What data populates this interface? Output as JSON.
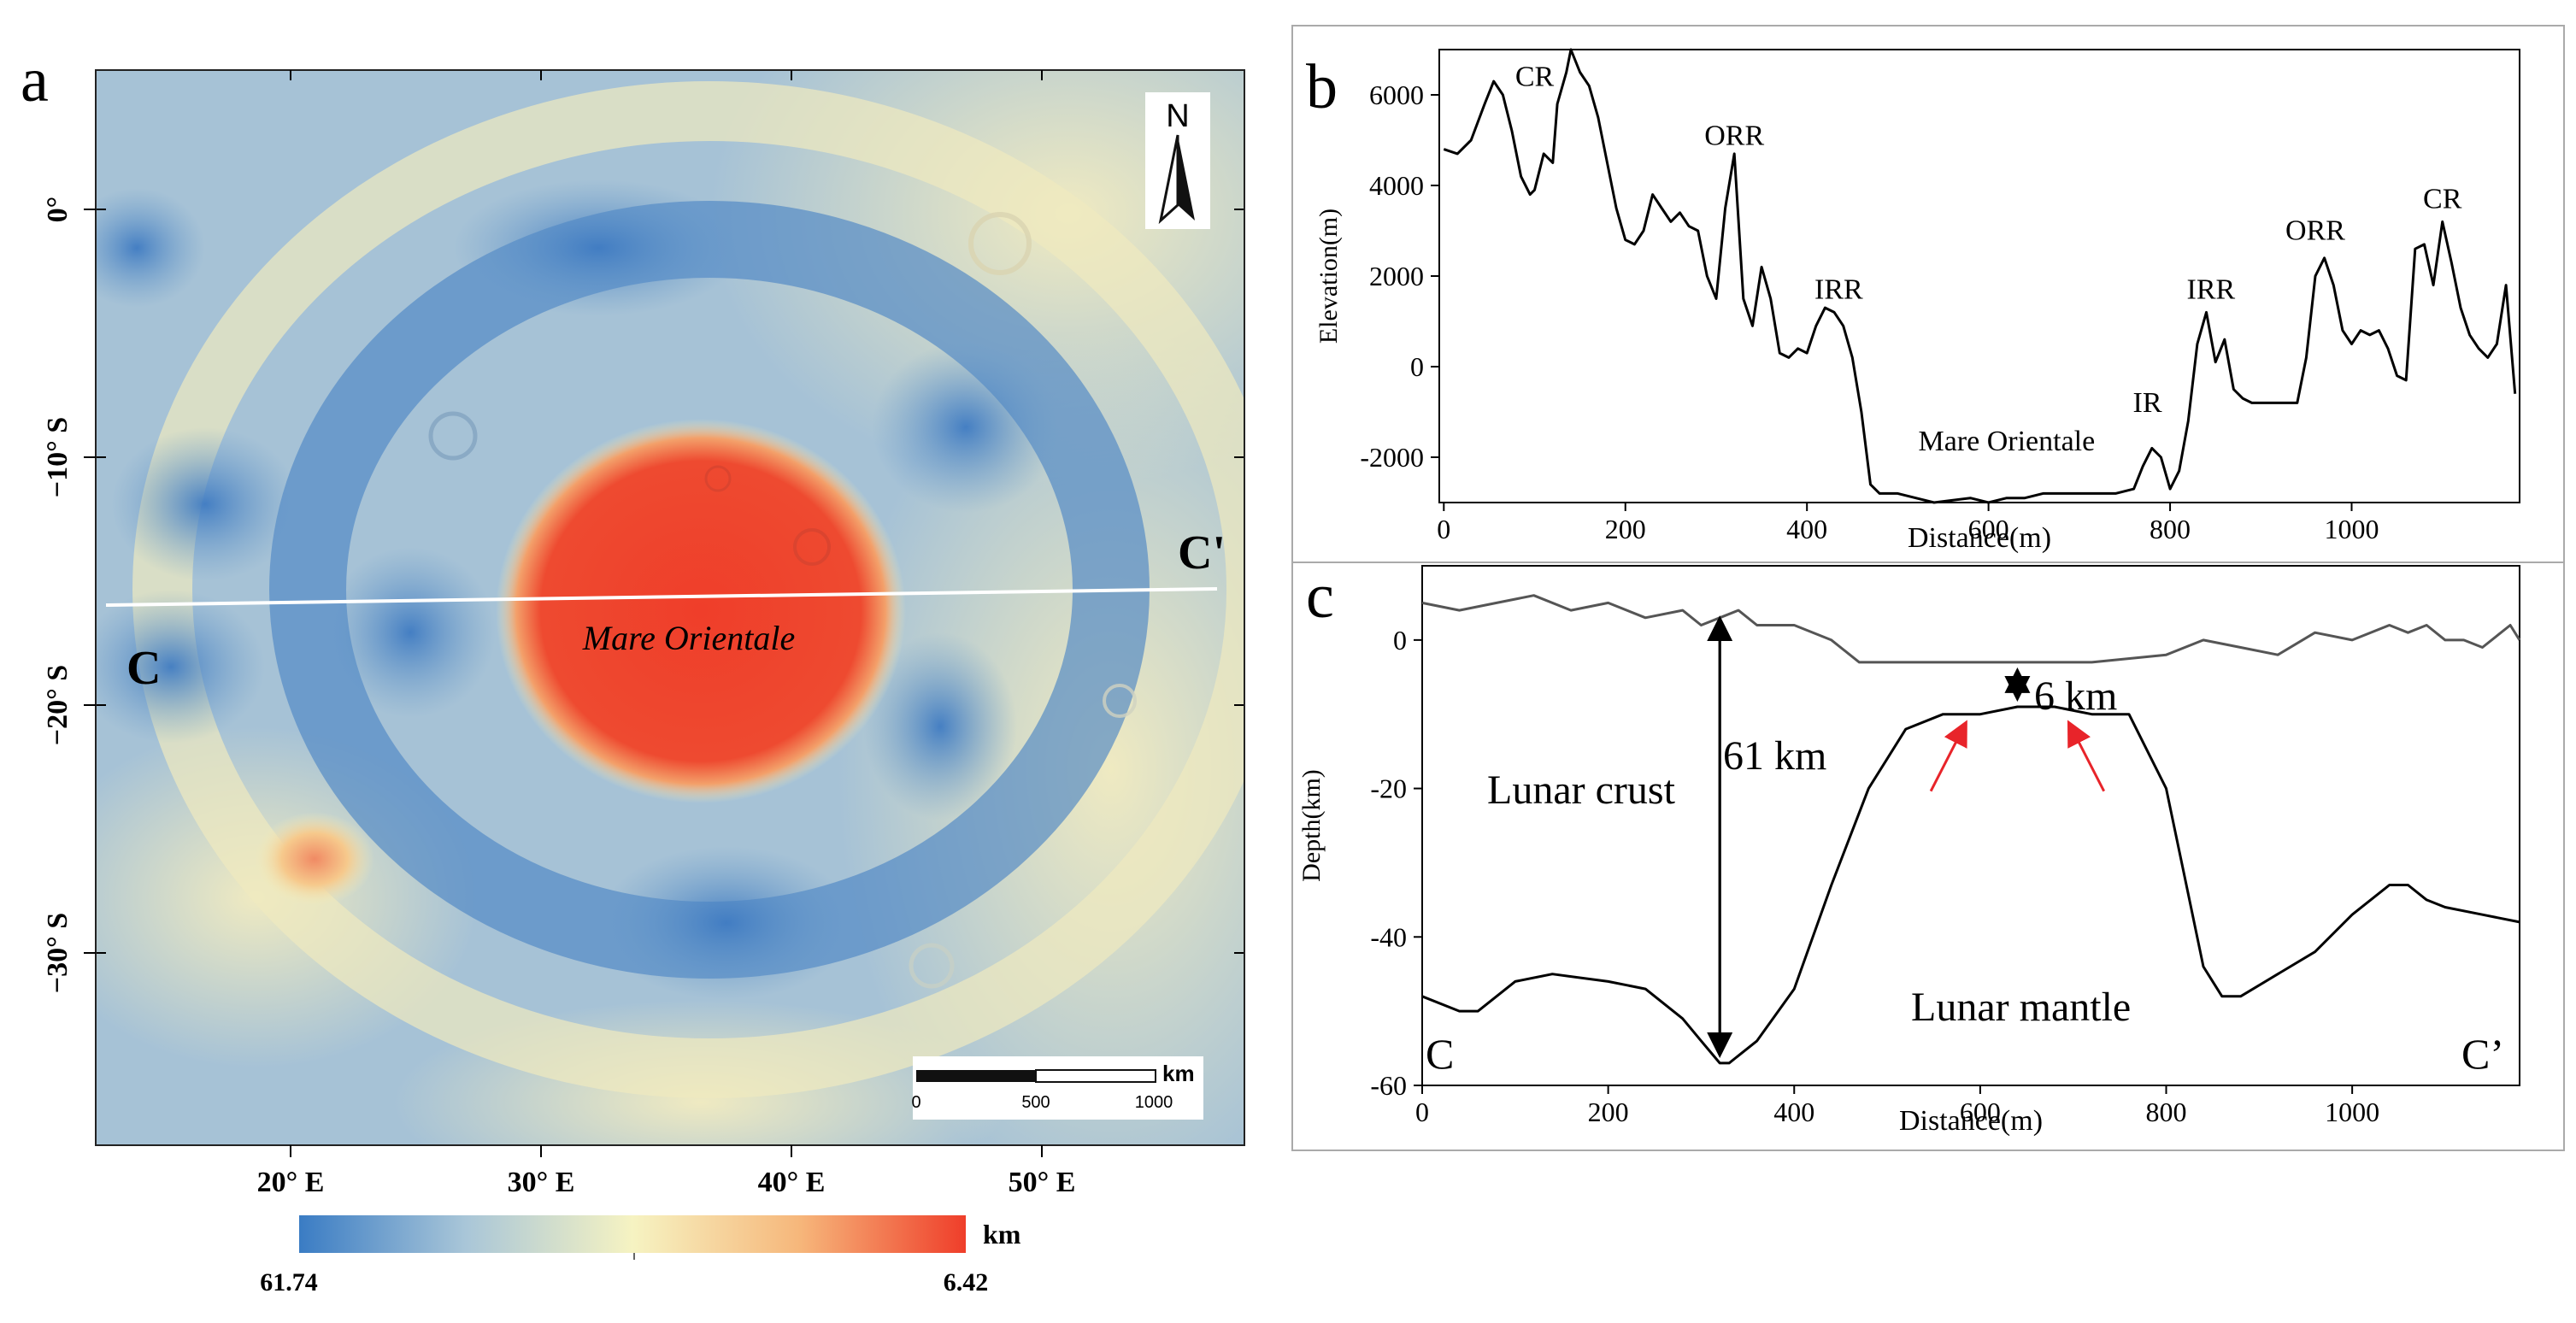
{
  "figure": {
    "panel_a": {
      "label": "a",
      "crater_label": "Mare Orientale",
      "profile_start": "C",
      "profile_end": "C'",
      "north": "N",
      "lon_ticks": [
        "20° E",
        "30° E",
        "40° E",
        "50° E"
      ],
      "lon_values": [
        20,
        30,
        40,
        50
      ],
      "lat_ticks": [
        "0°",
        "−10° S",
        "−20° S",
        "−30° S"
      ],
      "lat_values": [
        0,
        -10,
        -20,
        -30
      ],
      "scale_bar": {
        "unit": "km",
        "labels": [
          "0",
          "500",
          "1000"
        ]
      },
      "colorbar": {
        "unit": "km",
        "min_label": "61.74",
        "max_label": "6.42",
        "colors": [
          "#3a7cc4",
          "#a9c6d8",
          "#f6f3c2",
          "#f6b77b",
          "#ef3e2a"
        ]
      }
    },
    "panel_b": {
      "label": "b"
    },
    "panel_c": {
      "label": "c",
      "annotations": {
        "crust_thickness": "61 km",
        "mantle_uplift": "6 km",
        "crust": "Lunar crust",
        "mantle": "Lunar mantle",
        "start": "C",
        "end": "C’"
      }
    }
  },
  "chart_data": [
    {
      "type": "line",
      "panel": "b",
      "xlabel": "Distance(m)",
      "ylabel": "Elevation(m)",
      "xlim": [
        -5,
        1185
      ],
      "ylim": [
        -3000,
        7000
      ],
      "xticks": [
        0,
        200,
        400,
        600,
        800,
        1000
      ],
      "yticks": [
        -2000,
        0,
        2000,
        4000,
        6000
      ],
      "series": [
        {
          "name": "elevation",
          "x": [
            0,
            15,
            30,
            45,
            55,
            65,
            75,
            85,
            95,
            100,
            110,
            120,
            125,
            135,
            140,
            150,
            160,
            170,
            180,
            190,
            200,
            210,
            220,
            230,
            240,
            250,
            260,
            270,
            280,
            290,
            300,
            310,
            320,
            330,
            340,
            350,
            360,
            370,
            380,
            390,
            400,
            410,
            420,
            430,
            440,
            450,
            460,
            470,
            480,
            500,
            520,
            540,
            560,
            580,
            600,
            620,
            640,
            660,
            680,
            700,
            720,
            740,
            760,
            770,
            780,
            790,
            800,
            810,
            820,
            830,
            840,
            850,
            860,
            870,
            880,
            890,
            900,
            910,
            920,
            930,
            940,
            950,
            960,
            970,
            980,
            990,
            1000,
            1010,
            1020,
            1030,
            1040,
            1050,
            1060,
            1070,
            1080,
            1090,
            1100,
            1110,
            1120,
            1130,
            1140,
            1150,
            1160,
            1170,
            1180
          ],
          "y": [
            4800,
            4700,
            5000,
            5800,
            6300,
            6000,
            5200,
            4200,
            3800,
            3900,
            4700,
            4500,
            5800,
            6500,
            7000,
            6500,
            6200,
            5500,
            4500,
            3500,
            2800,
            2700,
            3000,
            3800,
            3500,
            3200,
            3400,
            3100,
            3000,
            2000,
            1500,
            3500,
            4700,
            1500,
            900,
            2200,
            1500,
            300,
            200,
            400,
            300,
            900,
            1300,
            1200,
            900,
            200,
            -1000,
            -2600,
            -2800,
            -2800,
            -2900,
            -3000,
            -2950,
            -2900,
            -3000,
            -2900,
            -2900,
            -2800,
            -2800,
            -2800,
            -2800,
            -2800,
            -2700,
            -2200,
            -1800,
            -2000,
            -2700,
            -2300,
            -1200,
            500,
            1200,
            100,
            600,
            -500,
            -700,
            -800,
            -800,
            -800,
            -800,
            -800,
            -800,
            200,
            2000,
            2400,
            1800,
            800,
            500,
            800,
            700,
            800,
            400,
            -200,
            -300,
            2600,
            2700,
            1800,
            3200,
            2300,
            1300,
            700,
            400,
            200,
            500,
            1800,
            -600
          ]
        }
      ],
      "annotations": [
        {
          "text": "CR",
          "x": 100,
          "y": 6200
        },
        {
          "text": "ORR",
          "x": 320,
          "y": 4900
        },
        {
          "text": "IRR",
          "x": 435,
          "y": 1500
        },
        {
          "text": "Mare Orientale",
          "x": 620,
          "y": -1850
        },
        {
          "text": "IR",
          "x": 775,
          "y": -1000
        },
        {
          "text": "IRR",
          "x": 845,
          "y": 1500
        },
        {
          "text": "ORR",
          "x": 960,
          "y": 2800
        },
        {
          "text": "CR",
          "x": 1100,
          "y": 3500
        }
      ]
    },
    {
      "type": "line",
      "panel": "c",
      "xlabel": "Distance(m)",
      "ylabel": "Depth(km)",
      "xlim": [
        0,
        1180
      ],
      "ylim": [
        -60,
        10
      ],
      "xticks": [
        0,
        200,
        400,
        600,
        800,
        1000
      ],
      "yticks": [
        -60,
        -40,
        -20,
        0
      ],
      "series": [
        {
          "name": "surface",
          "x": [
            0,
            40,
            80,
            120,
            160,
            200,
            240,
            280,
            300,
            320,
            340,
            360,
            400,
            440,
            470,
            480,
            500,
            560,
            640,
            720,
            800,
            840,
            880,
            920,
            960,
            1000,
            1040,
            1060,
            1080,
            1100,
            1120,
            1140,
            1160,
            1170,
            1180
          ],
          "y": [
            5,
            4,
            5,
            6,
            4,
            5,
            3,
            4,
            2,
            3,
            4,
            2,
            2,
            0,
            -3,
            -3,
            -3,
            -3,
            -3,
            -3,
            -2,
            0,
            -1,
            -2,
            1,
            0,
            2,
            1,
            2,
            0,
            0,
            -1,
            1,
            2,
            0
          ],
          "color": "#555555"
        },
        {
          "name": "moho",
          "x": [
            0,
            40,
            60,
            100,
            140,
            200,
            240,
            280,
            300,
            320,
            330,
            360,
            400,
            440,
            480,
            520,
            560,
            600,
            640,
            680,
            720,
            760,
            800,
            820,
            840,
            860,
            880,
            920,
            960,
            1000,
            1040,
            1060,
            1080,
            1100,
            1140,
            1180
          ],
          "y": [
            -48,
            -50,
            -50,
            -46,
            -45,
            -46,
            -47,
            -51,
            -54,
            -57,
            -57,
            -54,
            -47,
            -33,
            -20,
            -12,
            -10,
            -10,
            -9,
            -9,
            -10,
            -10,
            -20,
            -32,
            -44,
            -48,
            -48,
            -45,
            -42,
            -37,
            -33,
            -33,
            -35,
            -36,
            -37,
            -38
          ],
          "color": "#000000"
        }
      ],
      "markers": [
        {
          "type": "double_arrow",
          "x": 320,
          "y_from": 4,
          "y_to": -57,
          "label": "61 km"
        },
        {
          "type": "double_arrow",
          "x": 640,
          "y_from": -3,
          "y_to": -9,
          "label": "6 km"
        },
        {
          "type": "red_arrow",
          "x": 580,
          "y": -10
        },
        {
          "type": "red_arrow",
          "x": 700,
          "y": -10
        }
      ]
    }
  ]
}
